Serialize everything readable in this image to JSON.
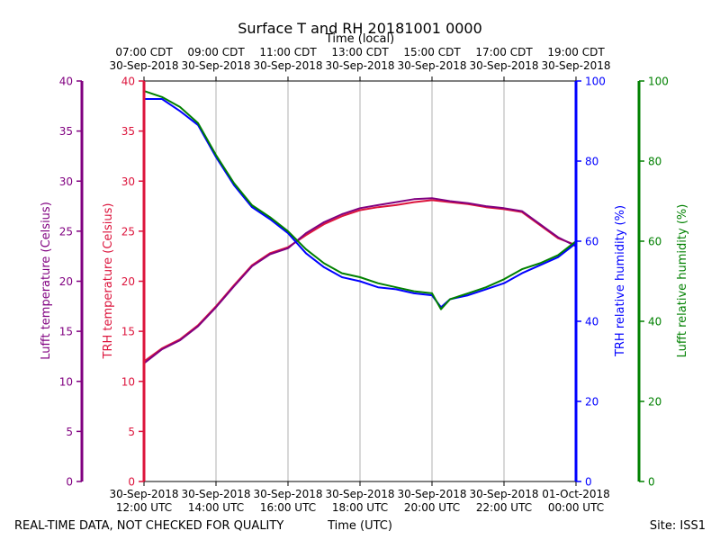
{
  "chart_data": {
    "type": "line",
    "title": "Surface T and RH 20181001 0000",
    "top_xlabel": "Time (local)",
    "xlabel": "Time (UTC)",
    "footer_left": "REAL-TIME DATA, NOT CHECKED FOR QUALITY",
    "footer_right": "Site: ISS1",
    "x_range_utc_hours": [
      12,
      24
    ],
    "bottom_ticks": [
      {
        "h": 12,
        "line1": "30-Sep-2018",
        "line2": "12:00 UTC"
      },
      {
        "h": 14,
        "line1": "30-Sep-2018",
        "line2": "14:00 UTC"
      },
      {
        "h": 16,
        "line1": "30-Sep-2018",
        "line2": "16:00 UTC"
      },
      {
        "h": 18,
        "line1": "30-Sep-2018",
        "line2": "18:00 UTC"
      },
      {
        "h": 20,
        "line1": "30-Sep-2018",
        "line2": "20:00 UTC"
      },
      {
        "h": 22,
        "line1": "30-Sep-2018",
        "line2": "22:00 UTC"
      },
      {
        "h": 24,
        "line1": "01-Oct-2018",
        "line2": "00:00 UTC"
      }
    ],
    "top_ticks": [
      {
        "h": 12,
        "line1": "07:00 CDT",
        "line2": "30-Sep-2018"
      },
      {
        "h": 14,
        "line1": "09:00 CDT",
        "line2": "30-Sep-2018"
      },
      {
        "h": 16,
        "line1": "11:00 CDT",
        "line2": "30-Sep-2018"
      },
      {
        "h": 18,
        "line1": "13:00 CDT",
        "line2": "30-Sep-2018"
      },
      {
        "h": 20,
        "line1": "15:00 CDT",
        "line2": "30-Sep-2018"
      },
      {
        "h": 22,
        "line1": "17:00 CDT",
        "line2": "30-Sep-2018"
      },
      {
        "h": 24,
        "line1": "19:00 CDT",
        "line2": "30-Sep-2018"
      }
    ],
    "axes": {
      "lufft_temp": {
        "label": "Lufft temperature (Celsius)",
        "ylim": [
          0,
          40
        ],
        "ticks": [
          0,
          5,
          10,
          15,
          20,
          25,
          30,
          35,
          40
        ],
        "color": "#800080"
      },
      "trh_temp": {
        "label": "TRH temperature (Celsius)",
        "ylim": [
          0,
          40
        ],
        "ticks": [
          0,
          5,
          10,
          15,
          20,
          25,
          30,
          35,
          40
        ],
        "color": "#dc143c"
      },
      "trh_rh": {
        "label": "TRH relative humidity (%)",
        "ylim": [
          0,
          100
        ],
        "ticks": [
          0,
          20,
          40,
          60,
          80,
          100
        ],
        "color": "#0000ff"
      },
      "lufft_rh": {
        "label": "Lufft relative humidity (%)",
        "ylim": [
          0,
          100
        ],
        "ticks": [
          0,
          20,
          40,
          60,
          80,
          100
        ],
        "color": "#008000"
      }
    },
    "series": [
      {
        "name": "TRH temperature",
        "axis": "trh_temp",
        "color": "#dc143c",
        "x": [
          12.0,
          12.5,
          13.0,
          13.5,
          14.0,
          14.5,
          15.0,
          15.5,
          16.0,
          16.5,
          17.0,
          17.5,
          18.0,
          18.5,
          19.0,
          19.5,
          20.0,
          20.5,
          21.0,
          21.5,
          22.0,
          22.5,
          23.0,
          23.5,
          24.0
        ],
        "values": [
          12.0,
          13.3,
          14.2,
          15.6,
          17.5,
          19.6,
          21.6,
          22.8,
          23.4,
          24.6,
          25.7,
          26.5,
          27.1,
          27.4,
          27.6,
          27.9,
          28.1,
          27.9,
          27.7,
          27.4,
          27.2,
          26.9,
          25.6,
          24.3,
          23.6
        ]
      },
      {
        "name": "Lufft temperature",
        "axis": "lufft_temp",
        "color": "#800080",
        "x": [
          12.0,
          12.5,
          13.0,
          13.5,
          14.0,
          14.5,
          15.0,
          15.5,
          16.0,
          16.5,
          17.0,
          17.5,
          18.0,
          18.5,
          19.0,
          19.5,
          20.0,
          20.5,
          21.0,
          21.5,
          22.0,
          22.5,
          23.0,
          23.5,
          24.0
        ],
        "values": [
          11.8,
          13.2,
          14.1,
          15.5,
          17.4,
          19.5,
          21.5,
          22.7,
          23.3,
          24.8,
          25.9,
          26.7,
          27.3,
          27.6,
          27.9,
          28.2,
          28.3,
          28.0,
          27.8,
          27.5,
          27.3,
          27.0,
          25.7,
          24.4,
          23.5
        ]
      },
      {
        "name": "TRH relative humidity",
        "axis": "trh_rh",
        "color": "#0000ff",
        "x": [
          12.0,
          12.5,
          13.0,
          13.5,
          14.0,
          14.5,
          15.0,
          15.5,
          16.0,
          16.5,
          17.0,
          17.5,
          18.0,
          18.5,
          19.0,
          19.5,
          20.0,
          20.25,
          20.5,
          21.0,
          21.5,
          22.0,
          22.5,
          23.0,
          23.5,
          24.0
        ],
        "values": [
          95.5,
          95.5,
          92.5,
          89.0,
          81.0,
          74.0,
          68.5,
          65.5,
          62.0,
          57.0,
          53.5,
          51.0,
          50.0,
          48.5,
          48.0,
          47.0,
          46.5,
          43.5,
          45.5,
          46.5,
          48.0,
          49.5,
          52.0,
          54.0,
          56.0,
          59.5
        ]
      },
      {
        "name": "Lufft relative humidity",
        "axis": "lufft_rh",
        "color": "#008000",
        "x": [
          12.0,
          12.5,
          13.0,
          13.5,
          14.0,
          14.5,
          15.0,
          15.5,
          16.0,
          16.5,
          17.0,
          17.5,
          18.0,
          18.5,
          19.0,
          19.5,
          20.0,
          20.25,
          20.5,
          21.0,
          21.5,
          22.0,
          22.5,
          23.0,
          23.5,
          24.0
        ],
        "values": [
          97.5,
          96.0,
          93.5,
          89.5,
          81.5,
          74.5,
          69.0,
          66.0,
          62.5,
          58.0,
          54.5,
          52.0,
          51.0,
          49.5,
          48.5,
          47.5,
          47.0,
          43.0,
          45.5,
          47.0,
          48.5,
          50.5,
          53.0,
          54.5,
          56.5,
          60.0
        ]
      }
    ]
  }
}
